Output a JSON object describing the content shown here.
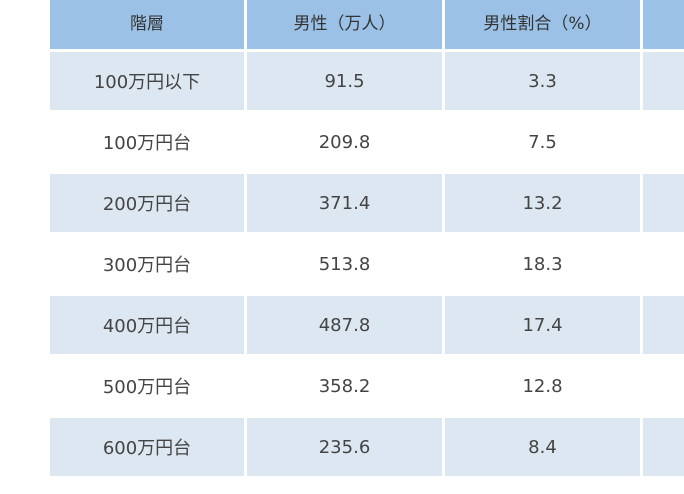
{
  "table": {
    "headers": [
      "階層",
      "男性（万人）",
      "男性割合（%）",
      ""
    ],
    "rows": [
      {
        "bracket": "100万円以下",
        "male": "91.5",
        "share": "3.3"
      },
      {
        "bracket": "100万円台",
        "male": "209.8",
        "share": "7.5"
      },
      {
        "bracket": "200万円台",
        "male": "371.4",
        "share": "13.2"
      },
      {
        "bracket": "300万円台",
        "male": "513.8",
        "share": "18.3"
      },
      {
        "bracket": "400万円台",
        "male": "487.8",
        "share": "17.4"
      },
      {
        "bracket": "500万円台",
        "male": "358.2",
        "share": "12.8"
      },
      {
        "bracket": "600万円台",
        "male": "235.6",
        "share": "8.4"
      }
    ]
  }
}
